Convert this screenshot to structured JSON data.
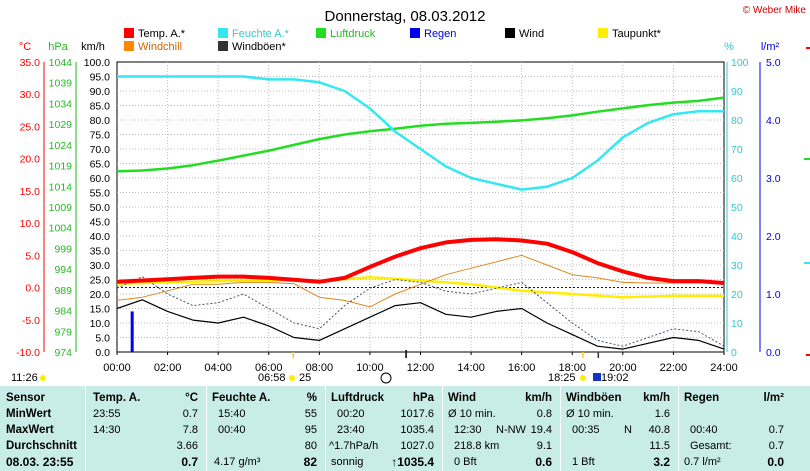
{
  "chart_data": {
    "type": "line",
    "title": "Donnerstag, 08.03.2012",
    "credit": "© Weber Mike",
    "legend": [
      {
        "label": "Temp. A.*",
        "color": "#ff0000"
      },
      {
        "label": "Feuchte A.*",
        "color": "#33e8f0"
      },
      {
        "label": "Luftdruck",
        "color": "#22dd22"
      },
      {
        "label": "Regen",
        "color": "#0000ee"
      },
      {
        "label": "Wind",
        "color": "#000000"
      },
      {
        "label": "Taupunkt*",
        "color": "#ffee00"
      },
      {
        "label": "Windchill",
        "color": "#ff8800"
      },
      {
        "label": "Windböen*",
        "color": "#333333"
      }
    ],
    "axes": {
      "temp": {
        "unit": "°C",
        "ticks": [
          "35.0",
          "30.0",
          "25.0",
          "20.0",
          "15.0",
          "10.0",
          "5.0",
          "0.0",
          "-5.0",
          "-10.0"
        ],
        "range": [
          -10,
          35
        ]
      },
      "pressure": {
        "unit": "hPa",
        "ticks": [
          "1044",
          "1039",
          "1034",
          "1029",
          "1024",
          "1019",
          "1014",
          "1009",
          "1004",
          "999",
          "994",
          "989",
          "984",
          "979",
          "974"
        ],
        "range": [
          974,
          1044
        ]
      },
      "wind": {
        "unit": "km/h",
        "ticks": [
          "100.0",
          "95.0",
          "90.0",
          "85.0",
          "80.0",
          "75.0",
          "70.0",
          "65.0",
          "60.0",
          "55.0",
          "50.0",
          "45.0",
          "40.0",
          "35.0",
          "30.0",
          "25.0",
          "20.0",
          "15.0",
          "10.0",
          "5.0",
          "0.0"
        ],
        "range": [
          0,
          100
        ]
      },
      "humidity": {
        "unit": "%",
        "ticks": [
          "100",
          "90",
          "80",
          "70",
          "60",
          "50",
          "40",
          "30",
          "20",
          "10",
          "0"
        ],
        "range": [
          0,
          100
        ]
      },
      "rain": {
        "unit": "l/m²",
        "ticks": [
          "5.0",
          "4.0",
          "3.0",
          "2.0",
          "1.0",
          "0.0"
        ],
        "range": [
          0,
          5
        ]
      },
      "time": {
        "ticks": [
          "00:00",
          "02:00",
          "04:00",
          "06:00",
          "08:00",
          "10:00",
          "12:00",
          "14:00",
          "16:00",
          "18:00",
          "20:00",
          "22:00",
          "24:00"
        ],
        "range": [
          0,
          24
        ]
      }
    },
    "annotations": {
      "moonrise": "11:26",
      "sunrise": "06:58",
      "moon_pct": "25",
      "sunset": "18:25",
      "moonset": "19:02"
    },
    "series": [
      {
        "name": "Temp. A.*",
        "axis": "temp",
        "x": [
          0,
          1,
          2,
          3,
          4,
          5,
          6,
          7,
          8,
          9,
          10,
          11,
          12,
          13,
          14,
          15,
          16,
          17,
          18,
          19,
          20,
          21,
          22,
          23,
          24
        ],
        "values": [
          0.9,
          1.1,
          1.3,
          1.5,
          1.7,
          1.7,
          1.5,
          1.2,
          0.9,
          1.5,
          3.2,
          4.8,
          6.1,
          7.0,
          7.4,
          7.5,
          7.3,
          6.8,
          5.5,
          3.8,
          2.5,
          1.5,
          1.0,
          1.0,
          0.7
        ]
      },
      {
        "name": "Feuchte A.*",
        "axis": "humidity",
        "x": [
          0,
          1,
          2,
          3,
          4,
          5,
          6,
          7,
          8,
          9,
          10,
          11,
          12,
          13,
          14,
          15,
          16,
          17,
          18,
          19,
          20,
          21,
          22,
          23,
          24
        ],
        "values": [
          95,
          95,
          95,
          95,
          95,
          95,
          94,
          94,
          93,
          90,
          84,
          76,
          70,
          64,
          60,
          58,
          56,
          57,
          60,
          66,
          74,
          79,
          82,
          83,
          83
        ]
      },
      {
        "name": "Luftdruck",
        "axis": "pressure",
        "x": [
          0,
          1,
          2,
          3,
          4,
          5,
          6,
          7,
          8,
          9,
          10,
          11,
          12,
          13,
          14,
          15,
          16,
          17,
          18,
          19,
          20,
          21,
          22,
          23,
          24
        ],
        "values": [
          1017.6,
          1017.8,
          1018.3,
          1019.1,
          1020.2,
          1021.4,
          1022.6,
          1024.0,
          1025.4,
          1026.5,
          1027.3,
          1027.9,
          1028.6,
          1029.1,
          1029.3,
          1029.6,
          1029.9,
          1030.4,
          1031.1,
          1032.0,
          1032.8,
          1033.6,
          1034.2,
          1034.6,
          1035.4
        ]
      },
      {
        "name": "Taupunkt*",
        "axis": "temp",
        "x": [
          0,
          2,
          4,
          6,
          8,
          10,
          12,
          14,
          16,
          18,
          20,
          22,
          24
        ],
        "values": [
          0.6,
          0.8,
          1.0,
          1.1,
          1.0,
          1.6,
          1.1,
          0.5,
          -0.5,
          -1.0,
          -1.5,
          -1.3,
          -1.3
        ]
      },
      {
        "name": "Windchill",
        "axis": "temp",
        "x": [
          0,
          1,
          2,
          3,
          4,
          5,
          6,
          7,
          8,
          9,
          10,
          11,
          12,
          13,
          14,
          15,
          16,
          17,
          18,
          19,
          20,
          21,
          22,
          23,
          24
        ],
        "values": [
          -2.0,
          -1.5,
          -0.5,
          0.5,
          0.5,
          0.8,
          0.8,
          0.6,
          -1.5,
          -2.0,
          -3.0,
          -1.0,
          0.5,
          2.0,
          3.0,
          4.0,
          5.0,
          3.5,
          2.0,
          1.5,
          0.8,
          0.7,
          0.7,
          0.7,
          0.7
        ]
      },
      {
        "name": "Wind",
        "axis": "wind",
        "x": [
          0,
          1,
          2,
          3,
          4,
          5,
          6,
          7,
          8,
          9,
          10,
          11,
          12,
          13,
          14,
          15,
          16,
          17,
          18,
          19,
          20,
          21,
          22,
          23,
          24
        ],
        "values": [
          15,
          18,
          14,
          11,
          10,
          12,
          9,
          5,
          4,
          8,
          12,
          16,
          17,
          13,
          12,
          14,
          15,
          10,
          6,
          2,
          1,
          3,
          5,
          4,
          1
        ]
      },
      {
        "name": "Windböen*",
        "axis": "wind",
        "x": [
          0,
          1,
          2,
          3,
          4,
          5,
          6,
          7,
          8,
          9,
          10,
          11,
          12,
          13,
          14,
          15,
          16,
          17,
          18,
          19,
          20,
          21,
          22,
          23,
          24
        ],
        "values": [
          22,
          26,
          20,
          16,
          17,
          20,
          15,
          10,
          8,
          16,
          22,
          25,
          24,
          21,
          20,
          22,
          24,
          17,
          10,
          4,
          2,
          5,
          8,
          7,
          2
        ]
      },
      {
        "name": "Regen",
        "axis": "rain",
        "x": [
          0.6
        ],
        "values": [
          0.7
        ]
      }
    ]
  },
  "table": {
    "labels": {
      "sensor": "Sensor",
      "min": "MinWert",
      "max": "MaxWert",
      "avg": "Durchschnitt",
      "now": "08.03. 23:55"
    },
    "temp": {
      "title": "Temp. A.",
      "unit": "°C",
      "min_t": "23:55",
      "min_v": "0.7",
      "max_t": "14:30",
      "max_v": "7.8",
      "avg": "3.66",
      "now": "0.7"
    },
    "hum": {
      "title": "Feuchte A.",
      "unit": "%",
      "min_t": "15:40",
      "min_v": "55",
      "max_t": "00:40",
      "max_v": "95",
      "avg": "80",
      "now_l": "4.17 g/m³",
      "now": "82"
    },
    "press": {
      "title": "Luftdruck",
      "unit": "hPa",
      "min_t": "00:20",
      "min_v": "1017.6",
      "max_t": "23:40",
      "max_v": "1035.4",
      "avg_l": "^1.7hPa/h",
      "avg": "1027.0",
      "now_l": "sonnig",
      "now": "↑1035.4"
    },
    "wind": {
      "title": "Wind",
      "unit": "km/h",
      "r1_l": "Ø 10 min.",
      "r1_v": "0.8",
      "r2_t": "12:30",
      "r2_d": "N-NW",
      "r2_v": "19.4",
      "r3_l": "218.8 km",
      "r3_v": "9.1",
      "r4_l": "0 Bft",
      "r4_v": "0.6"
    },
    "gust": {
      "title": "Windböen",
      "unit": "km/h",
      "r1_l": "Ø 10 min.",
      "r1_v": "1.6",
      "r2_t": "00:35",
      "r2_d": "N",
      "r2_v": "40.8",
      "r3_v": "11.5",
      "r4_l": "1 Bft",
      "r4_v": "3.2"
    },
    "rain": {
      "title": "Regen",
      "unit": "l/m²",
      "r2_t": "00:40",
      "r2_v": "0.7",
      "r3_l": "Gesamt:",
      "r3_v": "0.7",
      "r4_l": "0.7 l/m²",
      "r4_v": "0.0"
    }
  }
}
